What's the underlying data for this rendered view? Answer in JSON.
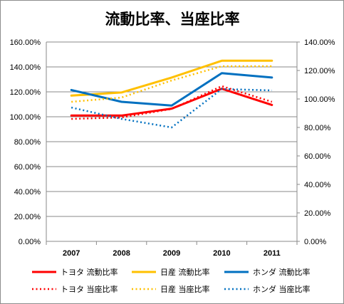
{
  "chart_data": {
    "type": "line",
    "title": "流動比率、当座比率",
    "categories": [
      "2007",
      "2008",
      "2009",
      "2010",
      "2011"
    ],
    "y_left": {
      "min": 0,
      "max": 160,
      "step": 20,
      "ticks": [
        "0.00%",
        "20.00%",
        "40.00%",
        "60.00%",
        "80.00%",
        "100.00%",
        "120.00%",
        "140.00%",
        "160.00%"
      ]
    },
    "y_right": {
      "min": 0,
      "max": 140,
      "step": 20,
      "ticks": [
        "0.00%",
        "20.00%",
        "40.00%",
        "60.00%",
        "80.00%",
        "100.00%",
        "120.00%",
        "140.00%"
      ]
    },
    "grid": true,
    "legend_position": "bottom",
    "series": [
      {
        "name": "トヨタ 流動比率",
        "color": "#ff0000",
        "style": "solid",
        "axis": "left",
        "values": [
          101,
          101,
          106.5,
          122.5,
          109.5
        ]
      },
      {
        "name": "日産 流動比率",
        "color": "#ffc000",
        "style": "solid",
        "axis": "left",
        "values": [
          117,
          119.5,
          131.5,
          145,
          145
        ]
      },
      {
        "name": "ホンダ 流動比率",
        "color": "#0070c0",
        "style": "solid",
        "axis": "left",
        "values": [
          121.5,
          112,
          109,
          135,
          131.5
        ]
      },
      {
        "name": "トヨタ 当座比率",
        "color": "#ff0000",
        "style": "dotted",
        "axis": "right",
        "values": [
          86,
          87,
          93,
          109,
          98
        ]
      },
      {
        "name": "日産 当座比率",
        "color": "#ffc000",
        "style": "dotted",
        "axis": "right",
        "values": [
          98,
          101,
          113,
          123,
          123
        ]
      },
      {
        "name": "ホンダ 当座比率",
        "color": "#0070c0",
        "style": "dotted",
        "axis": "right",
        "values": [
          94,
          86,
          80,
          107,
          106
        ]
      }
    ]
  }
}
